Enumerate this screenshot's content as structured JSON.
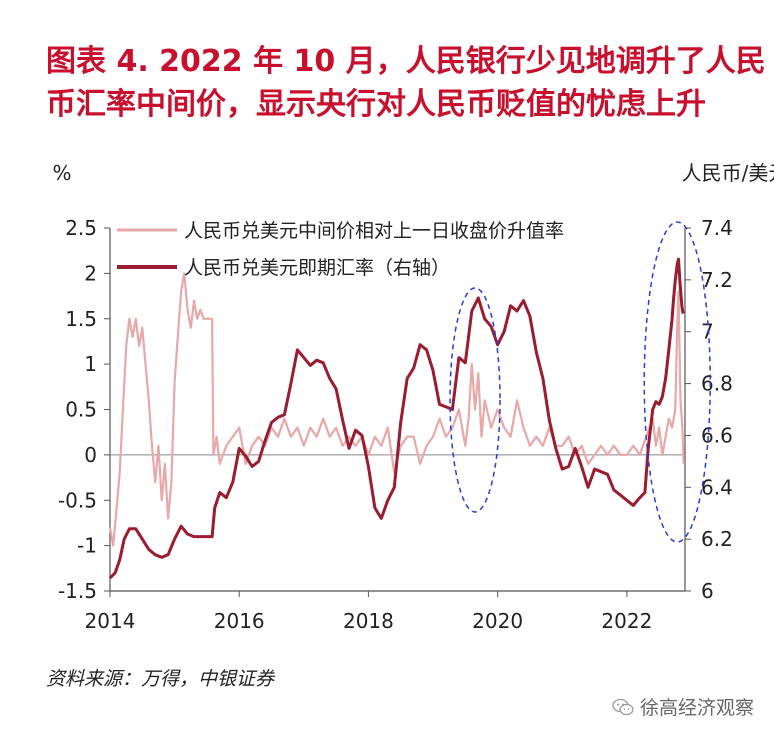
{
  "title": {
    "line1": "图表 4.  2022 年 10 月，人民银行少见地调升了人民",
    "line2": "币汇率中间价，显示央行对人民币贬值的忧虑上升"
  },
  "source": "资料来源：万得，中银证券",
  "brand": "徐高经济观察",
  "chart_data": {
    "type": "line",
    "left_axis": {
      "label": "%",
      "ticks": [
        "2.5",
        "2",
        "1.5",
        "1",
        "0.5",
        "0",
        "-0.5",
        "-1",
        "-1.5"
      ],
      "range": [
        -1.5,
        2.5
      ]
    },
    "right_axis": {
      "label": "人民币/美元",
      "ticks": [
        "7.4",
        "7.2",
        "7",
        "6.8",
        "6.6",
        "6.4",
        "6.2",
        "6"
      ],
      "range": [
        6.0,
        7.4
      ]
    },
    "x_axis": {
      "ticks": [
        "2014",
        "2016",
        "2018",
        "2020",
        "2022"
      ],
      "range": [
        2014.0,
        2022.9
      ]
    },
    "legend_position": "top-center",
    "series": [
      {
        "name": "人民币兑美元中间价相对上一日收盘价升值率",
        "axis": "left",
        "color": "#e8a8a8",
        "points": [
          [
            2014.0,
            -0.8
          ],
          [
            2014.05,
            -1.0
          ],
          [
            2014.1,
            -0.6
          ],
          [
            2014.15,
            -0.2
          ],
          [
            2014.2,
            0.5
          ],
          [
            2014.25,
            1.2
          ],
          [
            2014.3,
            1.5
          ],
          [
            2014.35,
            1.3
          ],
          [
            2014.4,
            1.5
          ],
          [
            2014.45,
            1.2
          ],
          [
            2014.5,
            1.4
          ],
          [
            2014.55,
            1.0
          ],
          [
            2014.6,
            0.6
          ],
          [
            2014.65,
            0.1
          ],
          [
            2014.7,
            -0.3
          ],
          [
            2014.75,
            0.1
          ],
          [
            2014.8,
            -0.5
          ],
          [
            2014.85,
            -0.1
          ],
          [
            2014.9,
            -0.7
          ],
          [
            2014.95,
            -0.3
          ],
          [
            2015.0,
            0.8
          ],
          [
            2015.05,
            1.3
          ],
          [
            2015.1,
            1.8
          ],
          [
            2015.15,
            2.0
          ],
          [
            2015.2,
            1.6
          ],
          [
            2015.25,
            1.4
          ],
          [
            2015.3,
            1.7
          ],
          [
            2015.35,
            1.5
          ],
          [
            2015.4,
            1.6
          ],
          [
            2015.45,
            1.5
          ],
          [
            2015.5,
            1.5
          ],
          [
            2015.55,
            1.5
          ],
          [
            2015.58,
            1.5
          ],
          [
            2015.6,
            0.0
          ],
          [
            2015.65,
            0.2
          ],
          [
            2015.7,
            -0.1
          ],
          [
            2015.8,
            0.1
          ],
          [
            2015.9,
            0.2
          ],
          [
            2016.0,
            0.3
          ],
          [
            2016.1,
            -0.1
          ],
          [
            2016.2,
            0.1
          ],
          [
            2016.3,
            0.2
          ],
          [
            2016.4,
            0.1
          ],
          [
            2016.5,
            0.3
          ],
          [
            2016.6,
            0.2
          ],
          [
            2016.7,
            0.4
          ],
          [
            2016.8,
            0.2
          ],
          [
            2016.9,
            0.3
          ],
          [
            2017.0,
            0.1
          ],
          [
            2017.1,
            0.3
          ],
          [
            2017.2,
            0.2
          ],
          [
            2017.3,
            0.4
          ],
          [
            2017.4,
            0.2
          ],
          [
            2017.5,
            0.3
          ],
          [
            2017.6,
            0.1
          ],
          [
            2017.7,
            0.2
          ],
          [
            2017.8,
            0.1
          ],
          [
            2017.9,
            0.2
          ],
          [
            2018.0,
            0.0
          ],
          [
            2018.1,
            0.2
          ],
          [
            2018.2,
            0.1
          ],
          [
            2018.3,
            0.3
          ],
          [
            2018.4,
            -0.2
          ],
          [
            2018.5,
            0.1
          ],
          [
            2018.6,
            0.2
          ],
          [
            2018.7,
            0.2
          ],
          [
            2018.8,
            -0.1
          ],
          [
            2018.9,
            0.1
          ],
          [
            2019.0,
            0.2
          ],
          [
            2019.1,
            0.4
          ],
          [
            2019.2,
            0.2
          ],
          [
            2019.3,
            0.3
          ],
          [
            2019.4,
            0.5
          ],
          [
            2019.5,
            0.1
          ],
          [
            2019.55,
            0.4
          ],
          [
            2019.6,
            1.0
          ],
          [
            2019.65,
            0.5
          ],
          [
            2019.7,
            0.9
          ],
          [
            2019.75,
            0.2
          ],
          [
            2019.8,
            0.6
          ],
          [
            2019.9,
            0.3
          ],
          [
            2020.0,
            0.5
          ],
          [
            2020.1,
            0.3
          ],
          [
            2020.2,
            0.2
          ],
          [
            2020.3,
            0.6
          ],
          [
            2020.4,
            0.3
          ],
          [
            2020.5,
            0.1
          ],
          [
            2020.6,
            0.2
          ],
          [
            2020.7,
            0.1
          ],
          [
            2020.8,
            0.3
          ],
          [
            2020.9,
            0.1
          ],
          [
            2021.0,
            0.1
          ],
          [
            2021.1,
            0.2
          ],
          [
            2021.2,
            0.0
          ],
          [
            2021.3,
            0.1
          ],
          [
            2021.4,
            -0.1
          ],
          [
            2021.5,
            0.0
          ],
          [
            2021.6,
            0.1
          ],
          [
            2021.7,
            0.0
          ],
          [
            2021.8,
            0.1
          ],
          [
            2021.9,
            0.0
          ],
          [
            2022.0,
            0.0
          ],
          [
            2022.1,
            0.1
          ],
          [
            2022.2,
            0.0
          ],
          [
            2022.3,
            0.2
          ],
          [
            2022.4,
            0.4
          ],
          [
            2022.45,
            0.1
          ],
          [
            2022.5,
            0.3
          ],
          [
            2022.55,
            0.0
          ],
          [
            2022.6,
            0.2
          ],
          [
            2022.65,
            0.4
          ],
          [
            2022.7,
            0.3
          ],
          [
            2022.75,
            0.5
          ],
          [
            2022.78,
            1.4
          ],
          [
            2022.8,
            1.8
          ],
          [
            2022.83,
            0.6
          ],
          [
            2022.86,
            0.3
          ],
          [
            2022.88,
            -0.1
          ]
        ]
      },
      {
        "name": "人民币兑美元即期汇率（右轴）",
        "axis": "right",
        "color": "#9b1b30",
        "points": [
          [
            2014.0,
            6.05
          ],
          [
            2014.08,
            6.07
          ],
          [
            2014.15,
            6.12
          ],
          [
            2014.22,
            6.2
          ],
          [
            2014.3,
            6.24
          ],
          [
            2014.4,
            6.24
          ],
          [
            2014.5,
            6.2
          ],
          [
            2014.6,
            6.16
          ],
          [
            2014.7,
            6.14
          ],
          [
            2014.8,
            6.13
          ],
          [
            2014.9,
            6.14
          ],
          [
            2015.0,
            6.2
          ],
          [
            2015.1,
            6.25
          ],
          [
            2015.2,
            6.22
          ],
          [
            2015.3,
            6.21
          ],
          [
            2015.4,
            6.21
          ],
          [
            2015.5,
            6.21
          ],
          [
            2015.58,
            6.21
          ],
          [
            2015.62,
            6.32
          ],
          [
            2015.7,
            6.38
          ],
          [
            2015.8,
            6.36
          ],
          [
            2015.9,
            6.42
          ],
          [
            2016.0,
            6.55
          ],
          [
            2016.1,
            6.52
          ],
          [
            2016.2,
            6.48
          ],
          [
            2016.3,
            6.5
          ],
          [
            2016.4,
            6.58
          ],
          [
            2016.5,
            6.65
          ],
          [
            2016.6,
            6.67
          ],
          [
            2016.7,
            6.68
          ],
          [
            2016.8,
            6.8
          ],
          [
            2016.9,
            6.93
          ],
          [
            2017.0,
            6.9
          ],
          [
            2017.1,
            6.87
          ],
          [
            2017.2,
            6.89
          ],
          [
            2017.3,
            6.88
          ],
          [
            2017.4,
            6.82
          ],
          [
            2017.5,
            6.78
          ],
          [
            2017.6,
            6.66
          ],
          [
            2017.7,
            6.55
          ],
          [
            2017.8,
            6.62
          ],
          [
            2017.9,
            6.6
          ],
          [
            2018.0,
            6.48
          ],
          [
            2018.1,
            6.32
          ],
          [
            2018.2,
            6.28
          ],
          [
            2018.3,
            6.35
          ],
          [
            2018.4,
            6.4
          ],
          [
            2018.5,
            6.65
          ],
          [
            2018.6,
            6.82
          ],
          [
            2018.7,
            6.86
          ],
          [
            2018.8,
            6.95
          ],
          [
            2018.9,
            6.93
          ],
          [
            2019.0,
            6.85
          ],
          [
            2019.1,
            6.72
          ],
          [
            2019.2,
            6.71
          ],
          [
            2019.3,
            6.7
          ],
          [
            2019.4,
            6.9
          ],
          [
            2019.5,
            6.88
          ],
          [
            2019.6,
            7.08
          ],
          [
            2019.7,
            7.13
          ],
          [
            2019.8,
            7.05
          ],
          [
            2019.9,
            7.02
          ],
          [
            2020.0,
            6.95
          ],
          [
            2020.1,
            7.0
          ],
          [
            2020.2,
            7.1
          ],
          [
            2020.3,
            7.08
          ],
          [
            2020.4,
            7.12
          ],
          [
            2020.5,
            7.06
          ],
          [
            2020.6,
            6.92
          ],
          [
            2020.7,
            6.82
          ],
          [
            2020.8,
            6.66
          ],
          [
            2020.9,
            6.55
          ],
          [
            2021.0,
            6.47
          ],
          [
            2021.1,
            6.48
          ],
          [
            2021.2,
            6.55
          ],
          [
            2021.3,
            6.48
          ],
          [
            2021.4,
            6.4
          ],
          [
            2021.5,
            6.47
          ],
          [
            2021.6,
            6.46
          ],
          [
            2021.7,
            6.45
          ],
          [
            2021.8,
            6.39
          ],
          [
            2021.9,
            6.37
          ],
          [
            2022.0,
            6.35
          ],
          [
            2022.1,
            6.33
          ],
          [
            2022.2,
            6.36
          ],
          [
            2022.28,
            6.38
          ],
          [
            2022.33,
            6.55
          ],
          [
            2022.4,
            6.7
          ],
          [
            2022.45,
            6.73
          ],
          [
            2022.5,
            6.72
          ],
          [
            2022.55,
            6.75
          ],
          [
            2022.6,
            6.82
          ],
          [
            2022.65,
            6.93
          ],
          [
            2022.7,
            7.05
          ],
          [
            2022.72,
            7.12
          ],
          [
            2022.75,
            7.2
          ],
          [
            2022.78,
            7.26
          ],
          [
            2022.8,
            7.28
          ],
          [
            2022.82,
            7.2
          ],
          [
            2022.85,
            7.1
          ],
          [
            2022.87,
            7.07
          ]
        ]
      }
    ]
  }
}
